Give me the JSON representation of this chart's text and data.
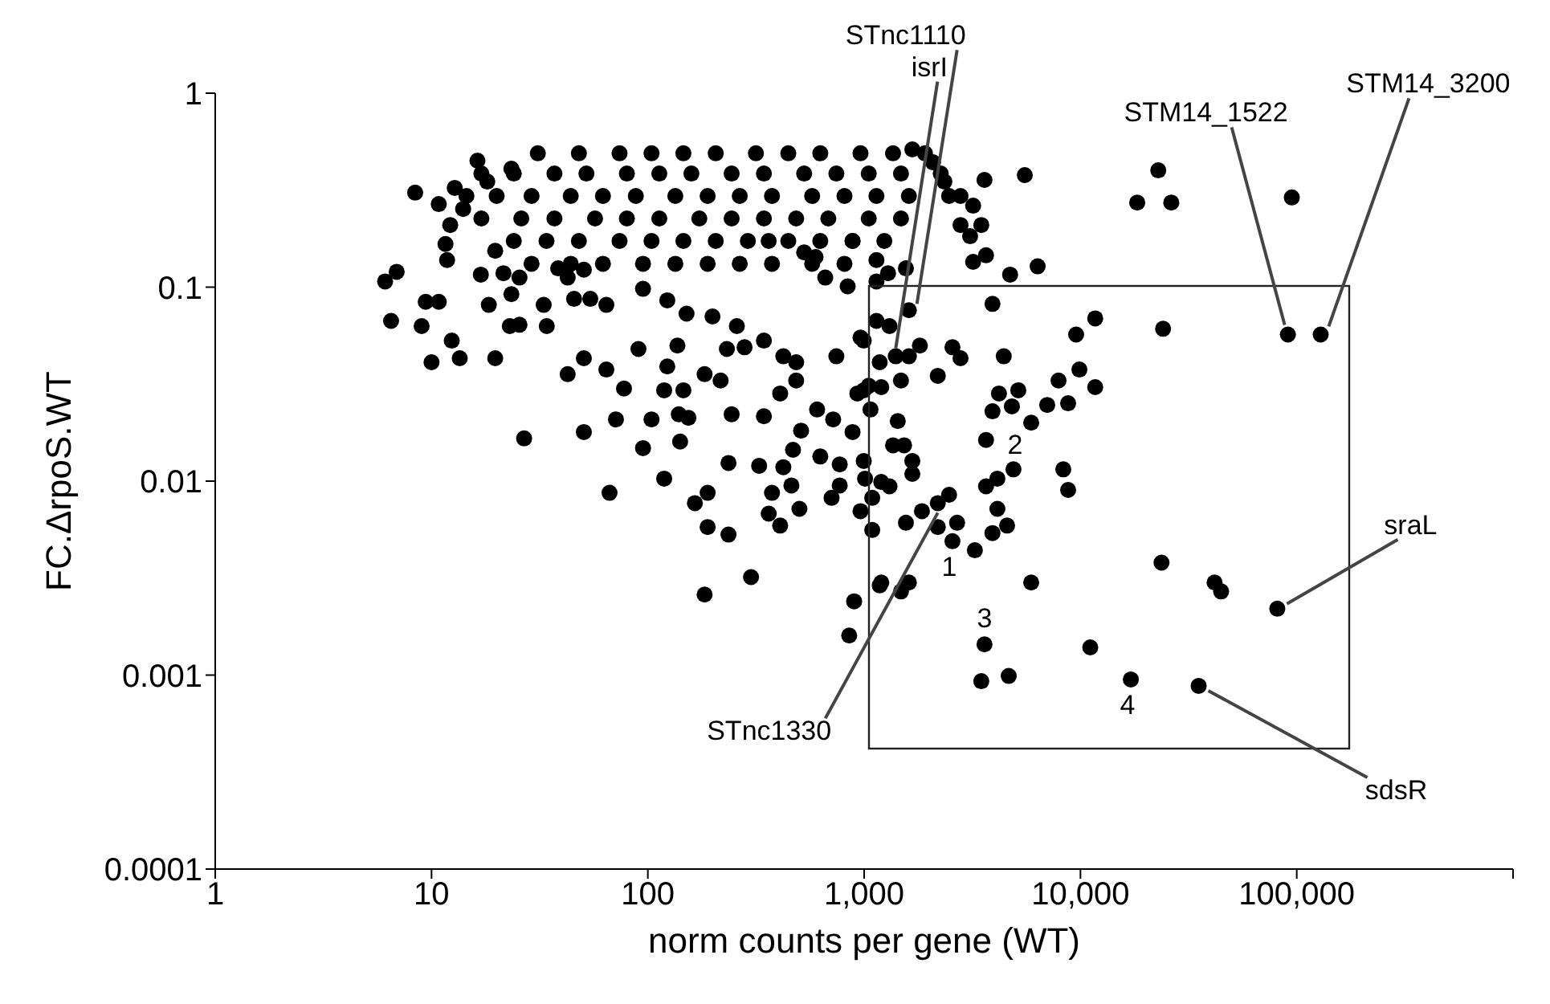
{
  "chart_data": {
    "type": "scatter",
    "xlabel": "norm counts per gene (WT)",
    "ylabel": "FC.ΔrpoS.WT",
    "log": "xy",
    "marker": "circle",
    "xlim": [
      1,
      1000000
    ],
    "ylim": [
      0.0001,
      1
    ],
    "xticks": [
      1,
      10,
      100,
      {
        "value": 1000,
        "label": "1,000"
      },
      {
        "value": 10000,
        "label": "10,000"
      },
      {
        "value": 100000,
        "label": "100,000"
      },
      {
        "value": 1000000,
        "label": null
      }
    ],
    "yticks": [
      0.0001,
      0.001,
      0.01,
      0.1,
      1
    ],
    "series": [
      {
        "color": "#000000",
        "x": [
          31,
          48,
          74,
          104,
          146,
          206,
          316,
          446,
          627,
          962,
          1360,
          1910,
          17,
          24,
          37,
          52,
          80,
          113,
          159,
          244,
          344,
          528,
          744,
          1050,
          1480,
          2260,
          14.5,
          20,
          29,
          44,
          62,
          88,
          134,
          189,
          266,
          375,
          575,
          811,
          1140,
          1610,
          2470,
          17,
          26,
          37,
          57,
          80,
          113,
          173,
          244,
          344,
          485,
          683,
          1050,
          1480,
          24,
          34,
          48,
          74,
          104,
          146,
          206,
          290,
          446,
          627,
          884,
          1240,
          29,
          44,
          62,
          95,
          134,
          189,
          266,
          375,
          575,
          811
        ],
        "values": [
          0.49,
          0.49,
          0.49,
          0.49,
          0.49,
          0.49,
          0.49,
          0.49,
          0.49,
          0.49,
          0.49,
          0.49,
          0.385,
          0.385,
          0.385,
          0.385,
          0.385,
          0.385,
          0.385,
          0.385,
          0.385,
          0.385,
          0.385,
          0.385,
          0.385,
          0.385,
          0.295,
          0.295,
          0.295,
          0.295,
          0.295,
          0.295,
          0.295,
          0.295,
          0.295,
          0.295,
          0.295,
          0.295,
          0.295,
          0.295,
          0.295,
          0.226,
          0.226,
          0.226,
          0.226,
          0.226,
          0.226,
          0.226,
          0.226,
          0.226,
          0.226,
          0.226,
          0.226,
          0.226,
          0.173,
          0.173,
          0.173,
          0.173,
          0.173,
          0.173,
          0.173,
          0.173,
          0.173,
          0.173,
          0.173,
          0.173,
          0.132,
          0.132,
          0.132,
          0.132,
          0.132,
          0.132,
          0.132,
          0.132,
          0.132,
          0.132
        ]
      },
      {
        "color": "#000000",
        "x": [
          16.3,
          8.4,
          10.8,
          12.8,
          18.1,
          23.4,
          12.2,
          14,
          11.6,
          11.8,
          6.1,
          6.9,
          16.9,
          19.7,
          21.5,
          25.5,
          23.4,
          9.4,
          10.8,
          18.4,
          6.5,
          9,
          12.4,
          10,
          13.5,
          19.7,
          23,
          25.5,
          33,
          34.1,
          42.6,
          50.6,
          64.3,
          77.6,
          71.2,
          50.6,
          26.8,
          66.5,
          45.6,
          54.2,
          64.3,
          42.6,
          50.6,
          38.5
        ],
        "values": [
          0.449,
          0.307,
          0.268,
          0.325,
          0.35,
          0.408,
          0.209,
          0.253,
          0.167,
          0.138,
          0.107,
          0.12,
          0.116,
          0.154,
          0.118,
          0.112,
          0.092,
          0.084,
          0.084,
          0.081,
          0.067,
          0.063,
          0.053,
          0.041,
          0.043,
          0.043,
          0.063,
          0.064,
          0.081,
          0.063,
          0.0356,
          0.043,
          0.0376,
          0.03,
          0.0208,
          0.0179,
          0.0166,
          0.0087,
          0.087,
          0.087,
          0.081,
          0.112,
          0.123,
          0.125
        ]
      },
      {
        "color": "#000000",
        "x": [
          362,
          528,
          596,
          884,
          1140,
          1140,
          839,
          661,
          95,
          123,
          151,
          199,
          258,
          344,
          90.5,
          137,
          232,
          280,
          423,
          485,
          744,
          123,
          183,
          217,
          485,
          409,
          119,
          146,
          996,
          996,
          1140,
          244,
          344,
          606,
          719,
          884,
          104,
          139,
          154,
          141,
          95,
          511,
          469,
          236,
          327,
          423,
          627,
          771,
          996,
          119,
          461,
          771,
          1010,
          375,
          189,
          165,
          707,
          502,
          362,
          962,
          189,
          236,
          409,
          1090,
          300,
          183,
          899,
          853,
          1180
        ],
        "values": [
          0.173,
          0.151,
          0.143,
          0.173,
          0.138,
          0.107,
          0.101,
          0.112,
          0.098,
          0.0855,
          0.073,
          0.0706,
          0.063,
          0.053,
          0.048,
          0.05,
          0.048,
          0.049,
          0.044,
          0.041,
          0.044,
          0.039,
          0.0356,
          0.033,
          0.033,
          0.0283,
          0.0294,
          0.0294,
          0.0294,
          0.053,
          0.067,
          0.0221,
          0.0216,
          0.0234,
          0.0208,
          0.0179,
          0.0208,
          0.0221,
          0.0212,
          0.016,
          0.0148,
          0.0182,
          0.0145,
          0.0124,
          0.012,
          0.0118,
          0.0134,
          0.0122,
          0.0127,
          0.0103,
          0.0095,
          0.0095,
          0.0103,
          0.0087,
          0.0087,
          0.0077,
          0.0082,
          0.0072,
          0.0068,
          0.007,
          0.0058,
          0.0053,
          0.0059,
          0.0056,
          0.0032,
          0.0026,
          0.0024,
          0.0016,
          0.0029
        ]
      },
      {
        "color": "#000000",
        "x": [
          1670,
          2080,
          2350,
          2790,
          3600,
          5530,
          3190,
          3480,
          2790,
          3090,
          3660,
          3190,
          4730,
          6340,
          1560,
          1290,
          3920,
          1610,
          1310,
          962,
          1400,
          1180,
          1610,
          1810,
          2560,
          2790,
          2190,
          4420,
          1480,
          1200,
          1050,
          930,
          1070,
          1430,
          1360,
          1530,
          1670,
          1670,
          1200,
          1310,
          1090,
          1560,
          1850,
          2190,
          2470,
          2190,
          2690,
          2560,
          3250,
          3660,
          4130,
          4900,
          4130,
          4580,
          3920,
          3660,
          3920,
          4200,
          5160,
          4820,
          5920,
          7020,
          1200,
          1480,
          1610,
          5920,
          3600,
          3480,
          4660
        ],
        "values": [
          0.513,
          0.44,
          0.35,
          0.295,
          0.357,
          0.378,
          0.263,
          0.209,
          0.209,
          0.183,
          0.146,
          0.135,
          0.116,
          0.128,
          0.125,
          0.118,
          0.082,
          0.076,
          0.063,
          0.055,
          0.044,
          0.041,
          0.044,
          0.05,
          0.049,
          0.043,
          0.0349,
          0.044,
          0.033,
          0.0305,
          0.031,
          0.0283,
          0.0234,
          0.0204,
          0.0153,
          0.0153,
          0.0127,
          0.0109,
          0.0099,
          0.0094,
          0.0082,
          0.0061,
          0.007,
          0.0077,
          0.0085,
          0.0058,
          0.0061,
          0.0049,
          0.0044,
          0.0094,
          0.0103,
          0.0115,
          0.0072,
          0.0059,
          0.0054,
          0.0163,
          0.0229,
          0.0283,
          0.0294,
          0.0243,
          0.02,
          0.0247,
          0.003,
          0.0027,
          0.003,
          0.003,
          0.00144,
          0.00093,
          0.00099
        ]
      },
      {
        "color": "#000000",
        "x": [
          22900,
          18300,
          26300,
          94900,
          9550,
          11700,
          24100,
          91000,
          129000,
          7920,
          9890,
          11700,
          8770,
          8330,
          8770,
          23700,
          41700,
          44700,
          81300,
          11100,
          17100,
          35200
        ],
        "values": [
          0.4,
          0.273,
          0.273,
          0.29,
          0.057,
          0.069,
          0.061,
          0.057,
          0.057,
          0.033,
          0.0376,
          0.0305,
          0.0252,
          0.0115,
          0.009,
          0.0038,
          0.003,
          0.0027,
          0.0022,
          0.00139,
          0.00095,
          0.00088
        ]
      }
    ],
    "annotations": [
      {
        "text": "isrI",
        "x": 1400,
        "y": 0.044
      },
      {
        "text": "STnc1110",
        "x": 1610,
        "y": 0.076
      },
      {
        "text": "STM14_1522",
        "x": 91000,
        "y": 0.057
      },
      {
        "text": "STM14_3200",
        "x": 129000,
        "y": 0.057
      },
      {
        "text": "sraL",
        "x": 81300,
        "y": 0.0022
      },
      {
        "text": "sdsR",
        "x": 35200,
        "y": 0.00088
      },
      {
        "text": "STnc1330",
        "x": 2190,
        "y": 0.0077
      },
      "1",
      "2",
      "3",
      "4"
    ]
  }
}
